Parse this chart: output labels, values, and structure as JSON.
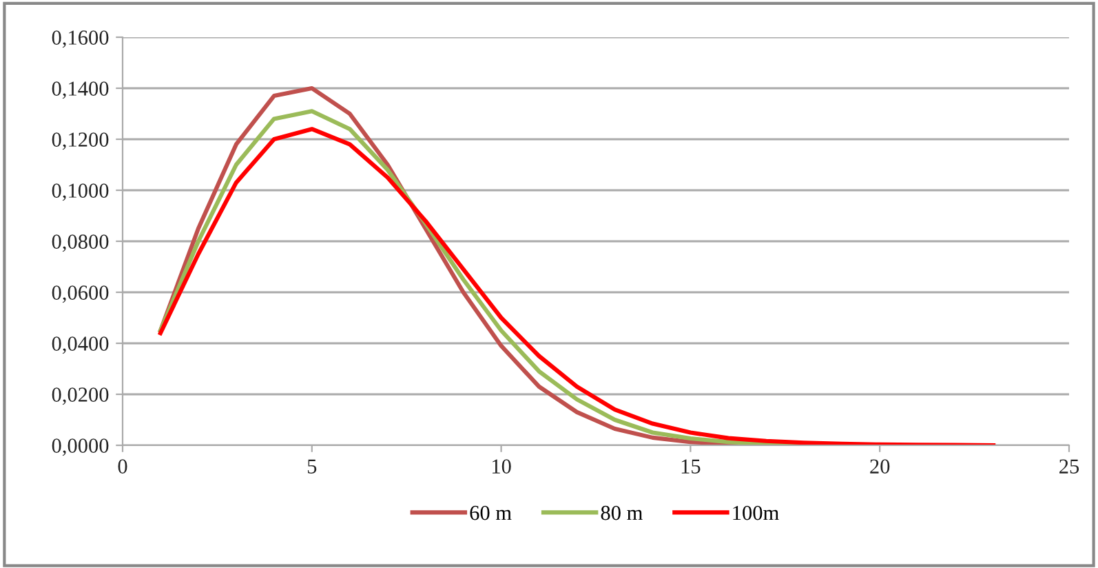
{
  "chart_data": {
    "type": "line",
    "x": [
      1,
      2,
      3,
      4,
      5,
      6,
      7,
      8,
      9,
      10,
      11,
      12,
      13,
      14,
      15,
      16,
      17,
      18,
      19,
      20,
      21,
      22,
      23
    ],
    "series": [
      {
        "name": "60 m",
        "color": "#c0504d",
        "values": [
          0.045,
          0.085,
          0.118,
          0.137,
          0.14,
          0.13,
          0.11,
          0.085,
          0.06,
          0.039,
          0.023,
          0.013,
          0.0065,
          0.003,
          0.0013,
          0.0005,
          0.0002,
          0.0001,
          0.0001,
          0,
          0,
          0,
          0
        ]
      },
      {
        "name": "80 m",
        "color": "#9bbb59",
        "values": [
          0.045,
          0.08,
          0.11,
          0.128,
          0.131,
          0.124,
          0.108,
          0.087,
          0.065,
          0.045,
          0.029,
          0.018,
          0.01,
          0.005,
          0.0027,
          0.0013,
          0.0006,
          0.0003,
          0.0001,
          null,
          null,
          null,
          null
        ]
      },
      {
        "name": "100m",
        "color": "#ff0000",
        "values": [
          0.044,
          0.075,
          0.103,
          0.12,
          0.124,
          0.118,
          0.105,
          0.088,
          0.069,
          0.05,
          0.035,
          0.023,
          0.014,
          0.0085,
          0.005,
          0.0028,
          0.0017,
          0.001,
          0.0006,
          0.0003,
          0.0002,
          0.0001,
          0
        ]
      }
    ],
    "xlim": [
      0,
      25
    ],
    "xticks": [
      0,
      5,
      10,
      15,
      20,
      25
    ],
    "ylim": [
      0,
      0.16
    ],
    "yticks": [
      {
        "value": 0,
        "label": "0,0000"
      },
      {
        "value": 0.02,
        "label": "0,0200"
      },
      {
        "value": 0.04,
        "label": "0,0400"
      },
      {
        "value": 0.06,
        "label": "0,0600"
      },
      {
        "value": 0.08,
        "label": "0,0800"
      },
      {
        "value": 0.1,
        "label": "0,1000"
      },
      {
        "value": 0.12,
        "label": "0,1200"
      },
      {
        "value": 0.14,
        "label": "0,1400"
      },
      {
        "value": 0.16,
        "label": "0,1600"
      }
    ],
    "grid": "y",
    "legend": "bottom",
    "marker": "none",
    "line_style": "solid"
  }
}
